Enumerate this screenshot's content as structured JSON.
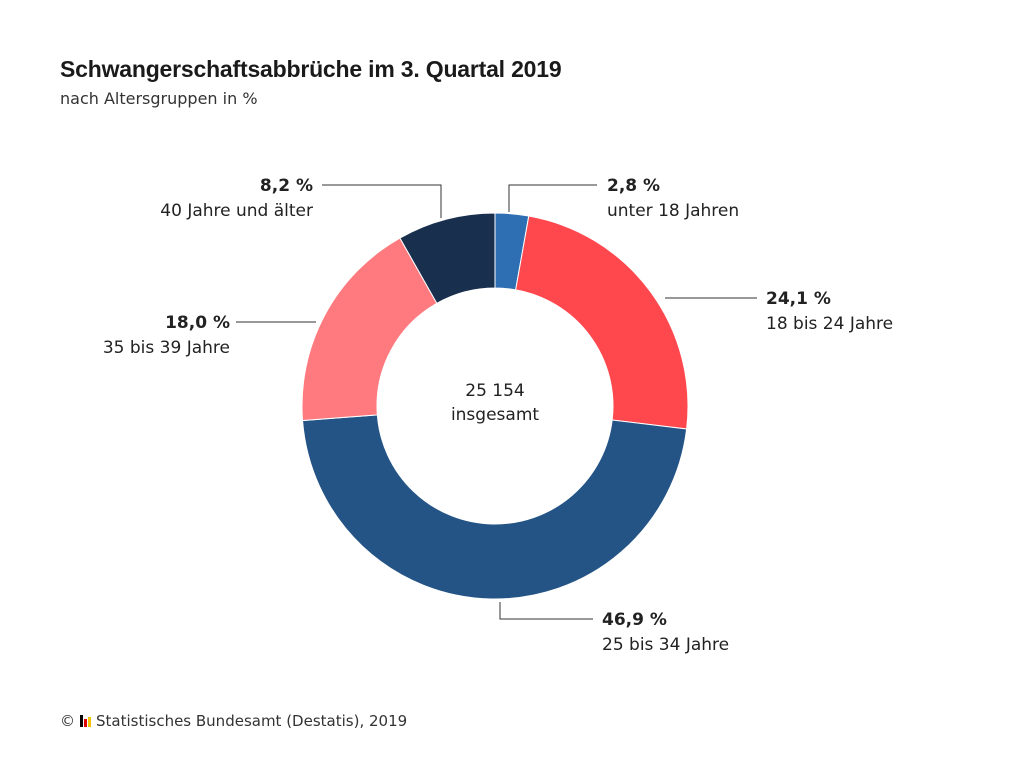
{
  "title": "Schwangerschaftsabbrüche im 3. Quartal 2019",
  "subtitle": "nach Altersgruppen in %",
  "footer": {
    "copyright": "©",
    "source": "Statistisches Bundesamt (Destatis), 2019",
    "logo_icon": "destatis-logo-icon"
  },
  "chart_data": {
    "type": "pie",
    "donut": true,
    "center_value": "25 154",
    "center_label": "insgesamt",
    "unit": "%",
    "slices": [
      {
        "value_label": "2,8 %",
        "value": 2.8,
        "label": "unter 18 Jahren",
        "color": "#2e6fb3"
      },
      {
        "value_label": "24,1 %",
        "value": 24.1,
        "label": "18 bis 24 Jahre",
        "color": "#ff474e"
      },
      {
        "value_label": "46,9 %",
        "value": 46.9,
        "label": "25 bis 34 Jahre",
        "color": "#245486"
      },
      {
        "value_label": "18,0 %",
        "value": 18.0,
        "label": "35 bis 39 Jahre",
        "color": "#ff7a7f"
      },
      {
        "value_label": "8,2 %",
        "value": 8.2,
        "label": "40 Jahre und älter",
        "color": "#182f4e"
      }
    ]
  }
}
